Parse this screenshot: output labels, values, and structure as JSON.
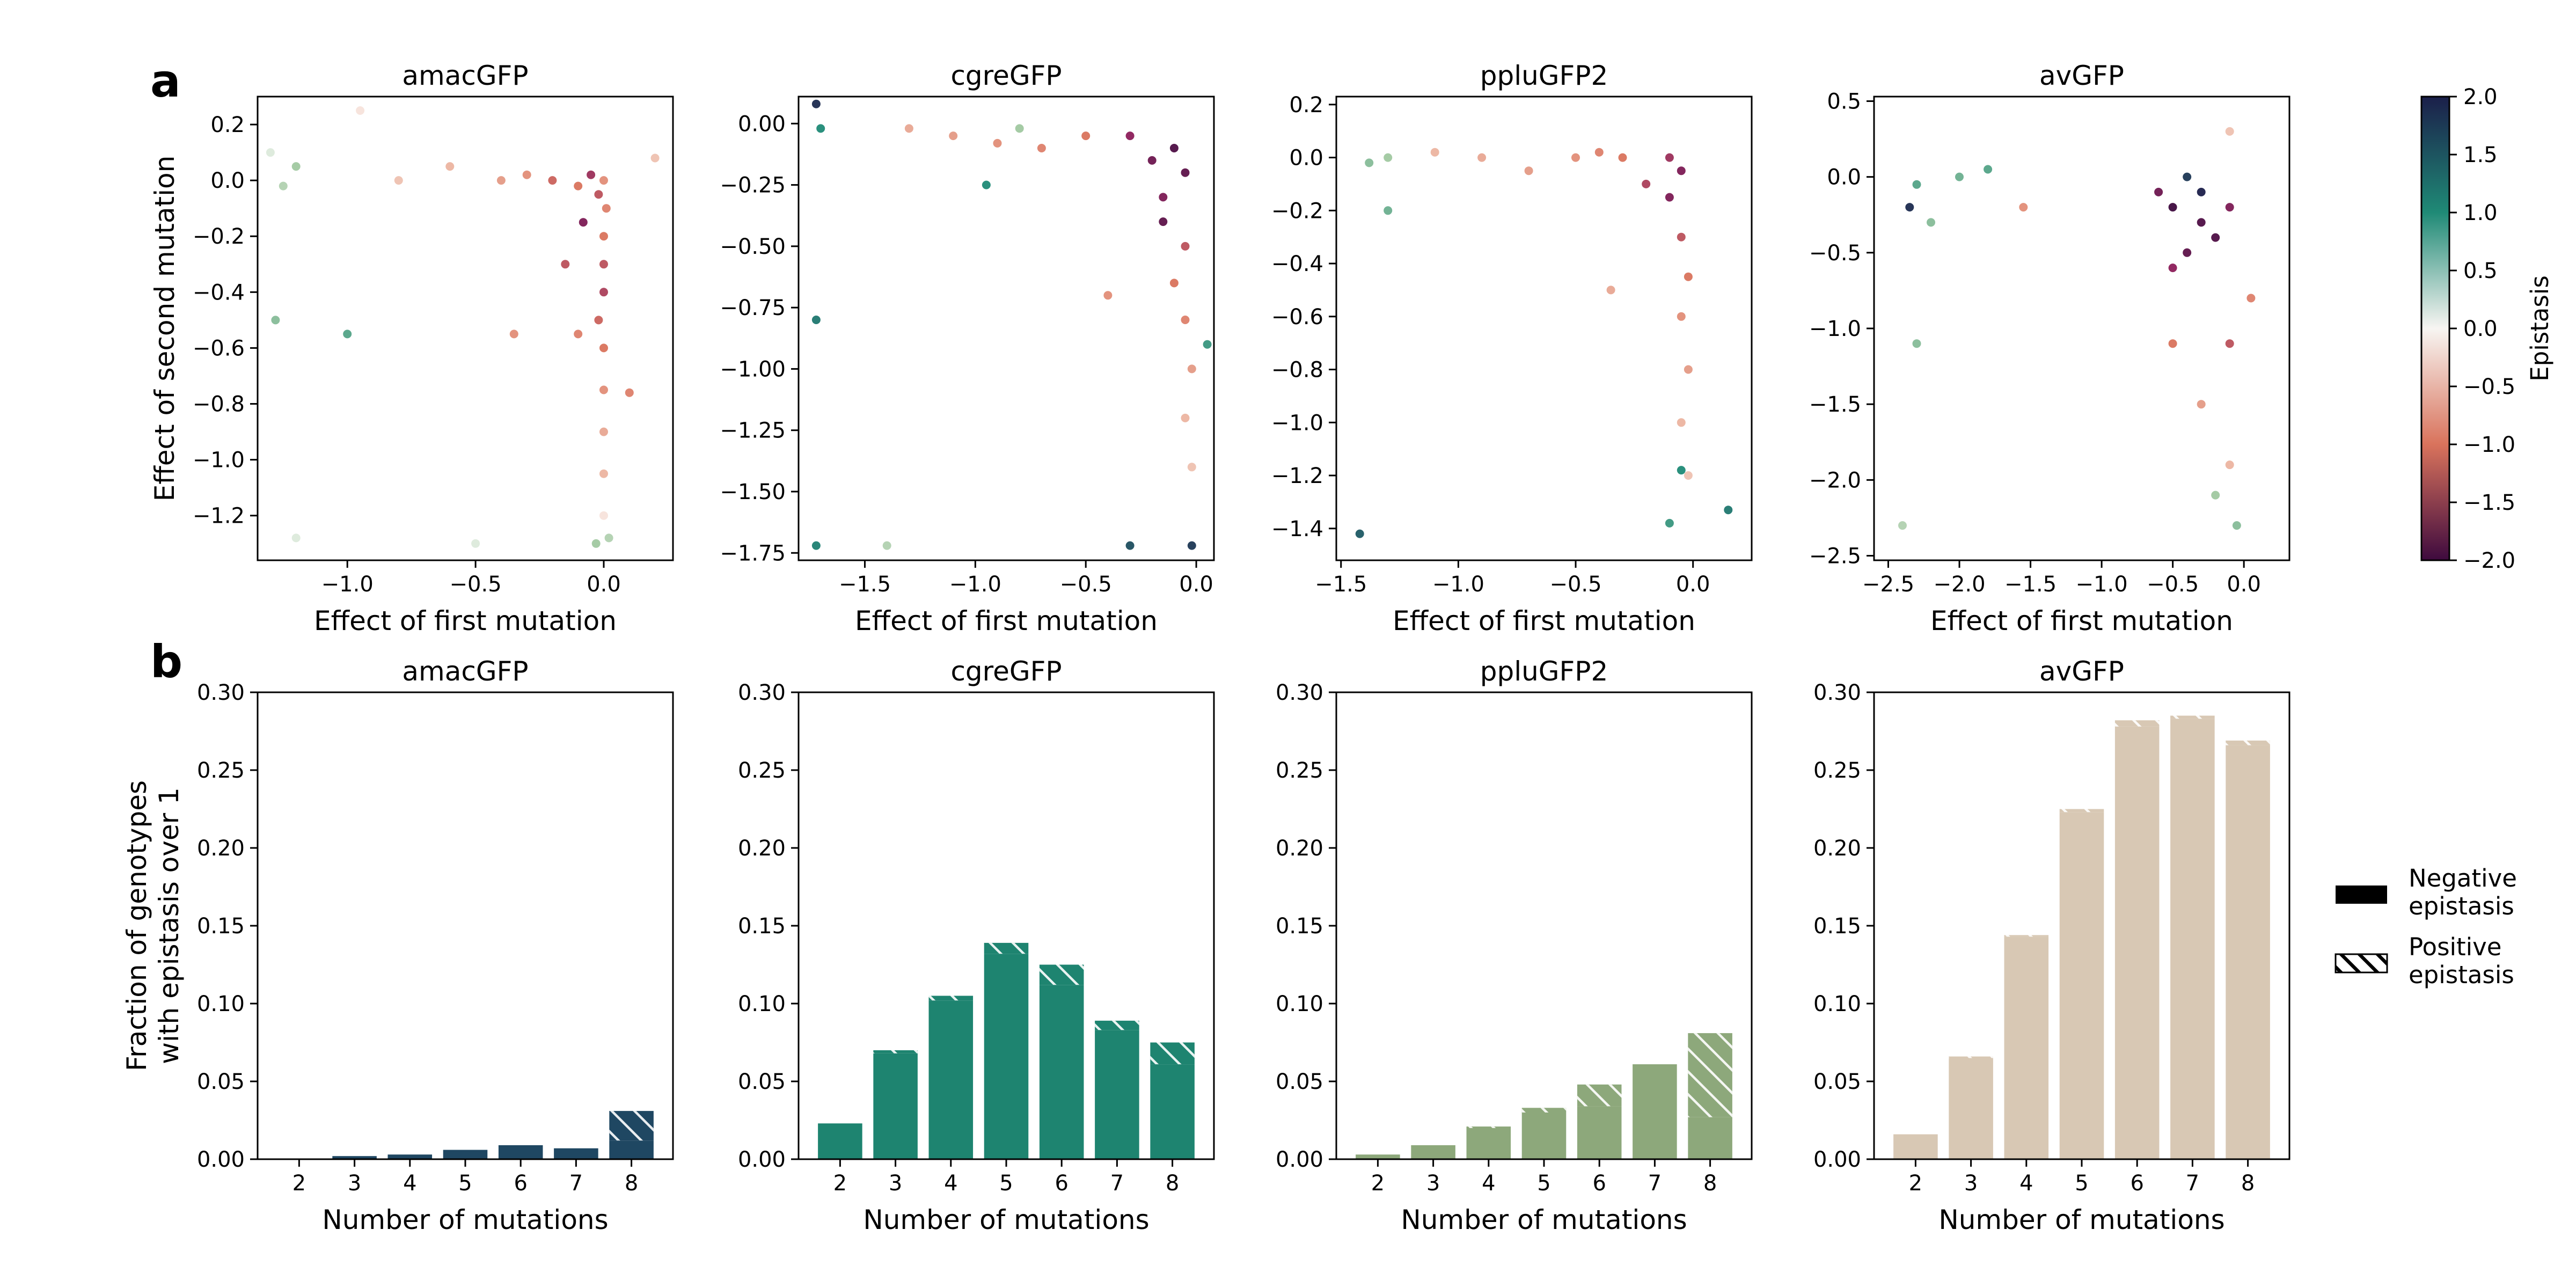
{
  "figure": {
    "panel_labels": [
      "a",
      "b"
    ],
    "colorbar": {
      "label": "Epistasis",
      "range": [
        -2.0,
        2.0
      ],
      "ticks": [
        "2.0",
        "1.5",
        "1.0",
        "0.5",
        "0.0",
        "−0.5",
        "−1.0",
        "−1.5",
        "−2.0"
      ],
      "colormap": "diverging: dark navy (2.0) → teal → white (0.0) → salmon → dark purple (−2.0)"
    },
    "legend": {
      "placement": "right of panel b",
      "items": [
        {
          "line1": "Negative",
          "line2": "epistasis",
          "style": "solid"
        },
        {
          "line1": "Positive",
          "line2": "epistasis",
          "style": "hatched"
        }
      ]
    }
  },
  "chart_data": [
    {
      "type": "scatter",
      "panel": "a",
      "title": "amacGFP",
      "xlabel": "Effect of first mutation",
      "ylabel": "Effect of second mutation",
      "xlim": [
        -1.35,
        0.27
      ],
      "ylim": [
        -1.36,
        0.3
      ],
      "xticks": [
        -1.0,
        -0.5,
        0.0
      ],
      "xtick_labels": [
        "−1.0",
        "−0.5",
        "0.0"
      ],
      "yticks": [
        0.2,
        0.0,
        -0.2,
        -0.4,
        -0.6,
        -0.8,
        -1.0,
        -1.2
      ],
      "ytick_labels": [
        "0.2",
        "0.0",
        "−0.2",
        "−0.4",
        "−0.6",
        "−0.8",
        "−1.0",
        "−1.2"
      ],
      "points": [
        [
          0.0,
          0.0,
          -0.8
        ],
        [
          -0.02,
          -0.05,
          -1.2
        ],
        [
          0.01,
          -0.1,
          -0.9
        ],
        [
          -0.05,
          0.02,
          -1.4
        ],
        [
          -0.1,
          -0.02,
          -1.0
        ],
        [
          -0.2,
          0.0,
          -1.1
        ],
        [
          -0.3,
          0.02,
          -0.8
        ],
        [
          -0.4,
          0.0,
          -0.7
        ],
        [
          -0.6,
          0.05,
          -0.5
        ],
        [
          -0.8,
          0.0,
          -0.4
        ],
        [
          -1.2,
          0.05,
          0.5
        ],
        [
          -1.25,
          -0.02,
          0.4
        ],
        [
          -1.3,
          0.1,
          0.3
        ],
        [
          0.0,
          -0.2,
          -1.0
        ],
        [
          0.0,
          -0.3,
          -1.2
        ],
        [
          0.0,
          -0.4,
          -1.3
        ],
        [
          -0.02,
          -0.5,
          -1.1
        ],
        [
          0.0,
          -0.6,
          -1.0
        ],
        [
          0.0,
          -0.75,
          -0.8
        ],
        [
          0.0,
          -0.9,
          -0.6
        ],
        [
          0.0,
          -1.05,
          -0.5
        ],
        [
          0.0,
          -1.2,
          -0.3
        ],
        [
          0.02,
          -1.28,
          0.4
        ],
        [
          -0.03,
          -1.3,
          0.5
        ],
        [
          -0.1,
          -0.55,
          -0.9
        ],
        [
          -0.15,
          -0.3,
          -1.2
        ],
        [
          -0.08,
          -0.15,
          -1.6
        ],
        [
          -0.95,
          0.25,
          -0.3
        ],
        [
          -1.0,
          -0.55,
          0.8
        ],
        [
          -1.28,
          -0.5,
          0.6
        ],
        [
          -0.5,
          -1.3,
          0.3
        ],
        [
          -1.2,
          -1.28,
          0.3
        ],
        [
          0.1,
          -0.76,
          -0.9
        ],
        [
          0.2,
          0.08,
          -0.4
        ],
        [
          -0.35,
          -0.55,
          -0.8
        ]
      ]
    },
    {
      "type": "scatter",
      "panel": "a",
      "title": "cgreGFP",
      "xlabel": "Effect of first mutation",
      "ylabel": "",
      "xlim": [
        -1.8,
        0.08
      ],
      "ylim": [
        -1.78,
        0.11
      ],
      "xticks": [
        -1.5,
        -1.0,
        -0.5,
        0.0
      ],
      "xtick_labels": [
        "−1.5",
        "−1.0",
        "−0.5",
        "0.0"
      ],
      "yticks": [
        0.0,
        -0.25,
        -0.5,
        -0.75,
        -1.0,
        -1.25,
        -1.5,
        -1.75
      ],
      "ytick_labels": [
        "0.00",
        "−0.25",
        "−0.50",
        "−0.75",
        "−1.00",
        "−1.25",
        "−1.50",
        "−1.75"
      ],
      "points": [
        [
          -0.1,
          -0.1,
          -1.9
        ],
        [
          -0.2,
          -0.15,
          -1.7
        ],
        [
          -0.05,
          -0.2,
          -1.8
        ],
        [
          -0.3,
          -0.05,
          -1.5
        ],
        [
          -0.15,
          -0.3,
          -1.6
        ],
        [
          -0.05,
          -0.5,
          -1.2
        ],
        [
          -0.1,
          -0.65,
          -1.0
        ],
        [
          -0.05,
          -0.8,
          -0.9
        ],
        [
          -0.02,
          -1.0,
          -0.7
        ],
        [
          -0.05,
          -1.2,
          -0.5
        ],
        [
          -0.02,
          -1.4,
          -0.4
        ],
        [
          -0.5,
          -0.05,
          -1.0
        ],
        [
          -0.7,
          -0.1,
          -0.9
        ],
        [
          -0.9,
          -0.08,
          -0.8
        ],
        [
          -1.1,
          -0.05,
          -0.7
        ],
        [
          -1.3,
          -0.02,
          -0.6
        ],
        [
          -1.7,
          -0.02,
          1.0
        ],
        [
          -1.72,
          -0.8,
          1.2
        ],
        [
          -1.72,
          -1.72,
          1.1
        ],
        [
          -0.02,
          -1.72,
          1.8
        ],
        [
          -0.3,
          -1.72,
          1.6
        ],
        [
          -0.95,
          -0.25,
          1.0
        ],
        [
          0.05,
          -0.9,
          0.9
        ],
        [
          -1.72,
          0.08,
          1.9
        ],
        [
          -0.4,
          -0.7,
          -0.8
        ],
        [
          -0.15,
          -0.4,
          -1.8
        ],
        [
          -1.4,
          -1.72,
          0.4
        ],
        [
          -0.8,
          -0.02,
          0.5
        ]
      ]
    },
    {
      "type": "scatter",
      "panel": "a",
      "title": "ppluGFP2",
      "xlabel": "Effect of first mutation",
      "ylabel": "",
      "xlim": [
        -1.52,
        0.25
      ],
      "ylim": [
        -1.52,
        0.23
      ],
      "xticks": [
        -1.5,
        -1.0,
        -0.5,
        0.0
      ],
      "xtick_labels": [
        "−1.5",
        "−1.0",
        "−0.5",
        "0.0"
      ],
      "yticks": [
        0.2,
        0.0,
        -0.2,
        -0.4,
        -0.6,
        -0.8,
        -1.0,
        -1.2,
        -1.4
      ],
      "ytick_labels": [
        "0.2",
        "0.0",
        "−0.2",
        "−0.4",
        "−0.6",
        "−0.8",
        "−1.0",
        "−1.2",
        "−1.4"
      ],
      "points": [
        [
          -0.05,
          -0.05,
          -1.6
        ],
        [
          -0.1,
          0.0,
          -1.4
        ],
        [
          -0.2,
          -0.1,
          -1.3
        ],
        [
          -0.3,
          0.0,
          -1.0
        ],
        [
          -0.4,
          0.02,
          -0.9
        ],
        [
          -0.5,
          0.0,
          -0.8
        ],
        [
          -0.7,
          -0.05,
          -0.7
        ],
        [
          -0.9,
          0.0,
          -0.6
        ],
        [
          -1.1,
          0.02,
          -0.5
        ],
        [
          -1.3,
          0.0,
          0.5
        ],
        [
          -1.38,
          -0.02,
          0.6
        ],
        [
          -0.05,
          -0.3,
          -1.2
        ],
        [
          -0.02,
          -0.45,
          -1.0
        ],
        [
          -0.05,
          -0.6,
          -0.8
        ],
        [
          -0.02,
          -0.8,
          -0.7
        ],
        [
          -0.05,
          -1.0,
          -0.5
        ],
        [
          -0.02,
          -1.2,
          -0.4
        ],
        [
          -1.42,
          -1.42,
          1.5
        ],
        [
          0.15,
          -1.33,
          1.2
        ],
        [
          -0.1,
          -1.38,
          0.9
        ],
        [
          -0.05,
          -1.18,
          1.0
        ],
        [
          -1.3,
          -0.2,
          0.7
        ],
        [
          -0.1,
          -0.15,
          -1.6
        ],
        [
          -0.35,
          -0.5,
          -0.6
        ]
      ]
    },
    {
      "type": "scatter",
      "panel": "a",
      "title": "avGFP",
      "xlabel": "Effect of first mutation",
      "ylabel": "",
      "xlim": [
        -2.6,
        0.32
      ],
      "ylim": [
        -2.53,
        0.53
      ],
      "xticks": [
        -2.5,
        -2.0,
        -1.5,
        -1.0,
        -0.5,
        0.0
      ],
      "xtick_labels": [
        "−2.5",
        "−2.0",
        "−1.5",
        "−1.0",
        "−0.5",
        "0.0"
      ],
      "yticks": [
        0.5,
        0.0,
        -0.5,
        -1.0,
        -1.5,
        -2.0,
        -2.5
      ],
      "ytick_labels": [
        "0.5",
        "0.0",
        "−0.5",
        "−1.0",
        "−1.5",
        "−2.0",
        "−2.5"
      ],
      "points": [
        [
          -0.5,
          -0.2,
          -2.0
        ],
        [
          -0.3,
          -0.3,
          -1.9
        ],
        [
          -0.4,
          -0.5,
          -1.8
        ],
        [
          -0.2,
          -0.4,
          -1.9
        ],
        [
          -0.6,
          -0.1,
          -1.7
        ],
        [
          -0.1,
          -0.2,
          -1.6
        ],
        [
          -0.5,
          -0.6,
          -1.5
        ],
        [
          -0.3,
          -0.1,
          2.0
        ],
        [
          -0.4,
          0.0,
          1.8
        ],
        [
          -2.35,
          -0.2,
          1.9
        ],
        [
          -2.3,
          -0.05,
          0.8
        ],
        [
          -2.2,
          -0.3,
          0.6
        ],
        [
          -2.0,
          0.0,
          0.7
        ],
        [
          -1.8,
          0.05,
          0.8
        ],
        [
          -1.55,
          -0.2,
          -0.8
        ],
        [
          -0.5,
          -1.1,
          -1.0
        ],
        [
          -0.1,
          -1.1,
          -1.2
        ],
        [
          -0.3,
          -1.5,
          -0.7
        ],
        [
          -0.1,
          -1.9,
          -0.5
        ],
        [
          -0.2,
          -2.1,
          0.5
        ],
        [
          -0.05,
          -2.3,
          0.6
        ],
        [
          -2.4,
          -2.3,
          0.4
        ],
        [
          -2.3,
          -1.1,
          0.6
        ],
        [
          -0.1,
          0.3,
          -0.4
        ],
        [
          0.05,
          -0.8,
          -0.9
        ]
      ]
    },
    {
      "type": "bar",
      "panel": "b",
      "title": "amacGFP",
      "xlabel": "Number of mutations",
      "ylabel": "Fraction of genotypes\nwith epistasis over 1",
      "ylim": [
        0,
        0.3
      ],
      "ytick_labels": [
        "0.00",
        "0.05",
        "0.10",
        "0.15",
        "0.20",
        "0.25",
        "0.30"
      ],
      "categories": [
        "2",
        "3",
        "4",
        "5",
        "6",
        "7",
        "8"
      ],
      "color": "#1f4762",
      "series": [
        {
          "name": "Negative epistasis",
          "values": [
            0.0,
            0.002,
            0.003,
            0.006,
            0.009,
            0.007,
            0.012
          ]
        },
        {
          "name": "Positive epistasis",
          "values": [
            0.0,
            0.0,
            0.0,
            0.0,
            0.0,
            0.0,
            0.019
          ]
        }
      ]
    },
    {
      "type": "bar",
      "panel": "b",
      "title": "cgreGFP",
      "xlabel": "Number of mutations",
      "ylabel": "",
      "ylim": [
        0,
        0.3
      ],
      "ytick_labels": [
        "0.00",
        "0.05",
        "0.10",
        "0.15",
        "0.20",
        "0.25",
        "0.30"
      ],
      "categories": [
        "2",
        "3",
        "4",
        "5",
        "6",
        "7",
        "8"
      ],
      "color": "#1e8470",
      "series": [
        {
          "name": "Negative epistasis",
          "values": [
            0.023,
            0.068,
            0.102,
            0.132,
            0.112,
            0.083,
            0.061
          ]
        },
        {
          "name": "Positive epistasis",
          "values": [
            0.0,
            0.002,
            0.003,
            0.007,
            0.013,
            0.006,
            0.014
          ]
        }
      ]
    },
    {
      "type": "bar",
      "panel": "b",
      "title": "ppluGFP2",
      "xlabel": "Number of mutations",
      "ylabel": "",
      "ylim": [
        0,
        0.3
      ],
      "ytick_labels": [
        "0.00",
        "0.05",
        "0.10",
        "0.15",
        "0.20",
        "0.25",
        "0.30"
      ],
      "categories": [
        "2",
        "3",
        "4",
        "5",
        "6",
        "7",
        "8"
      ],
      "color": "#8da87b",
      "series": [
        {
          "name": "Negative epistasis",
          "values": [
            0.003,
            0.009,
            0.02,
            0.03,
            0.034,
            0.061,
            0.027
          ]
        },
        {
          "name": "Positive epistasis",
          "values": [
            0.0,
            0.0,
            0.001,
            0.003,
            0.014,
            0.0,
            0.054
          ]
        }
      ]
    },
    {
      "type": "bar",
      "panel": "b",
      "title": "avGFP",
      "xlabel": "Number of mutations",
      "ylabel": "",
      "ylim": [
        0,
        0.3
      ],
      "ytick_labels": [
        "0.00",
        "0.05",
        "0.10",
        "0.15",
        "0.20",
        "0.25",
        "0.30"
      ],
      "categories": [
        "2",
        "3",
        "4",
        "5",
        "6",
        "7",
        "8"
      ],
      "color": "#d8c8b4",
      "series": [
        {
          "name": "Negative epistasis",
          "values": [
            0.016,
            0.065,
            0.143,
            0.223,
            0.278,
            0.283,
            0.266
          ]
        },
        {
          "name": "Positive epistasis",
          "values": [
            0.0,
            0.001,
            0.001,
            0.002,
            0.004,
            0.002,
            0.003
          ]
        }
      ]
    }
  ]
}
